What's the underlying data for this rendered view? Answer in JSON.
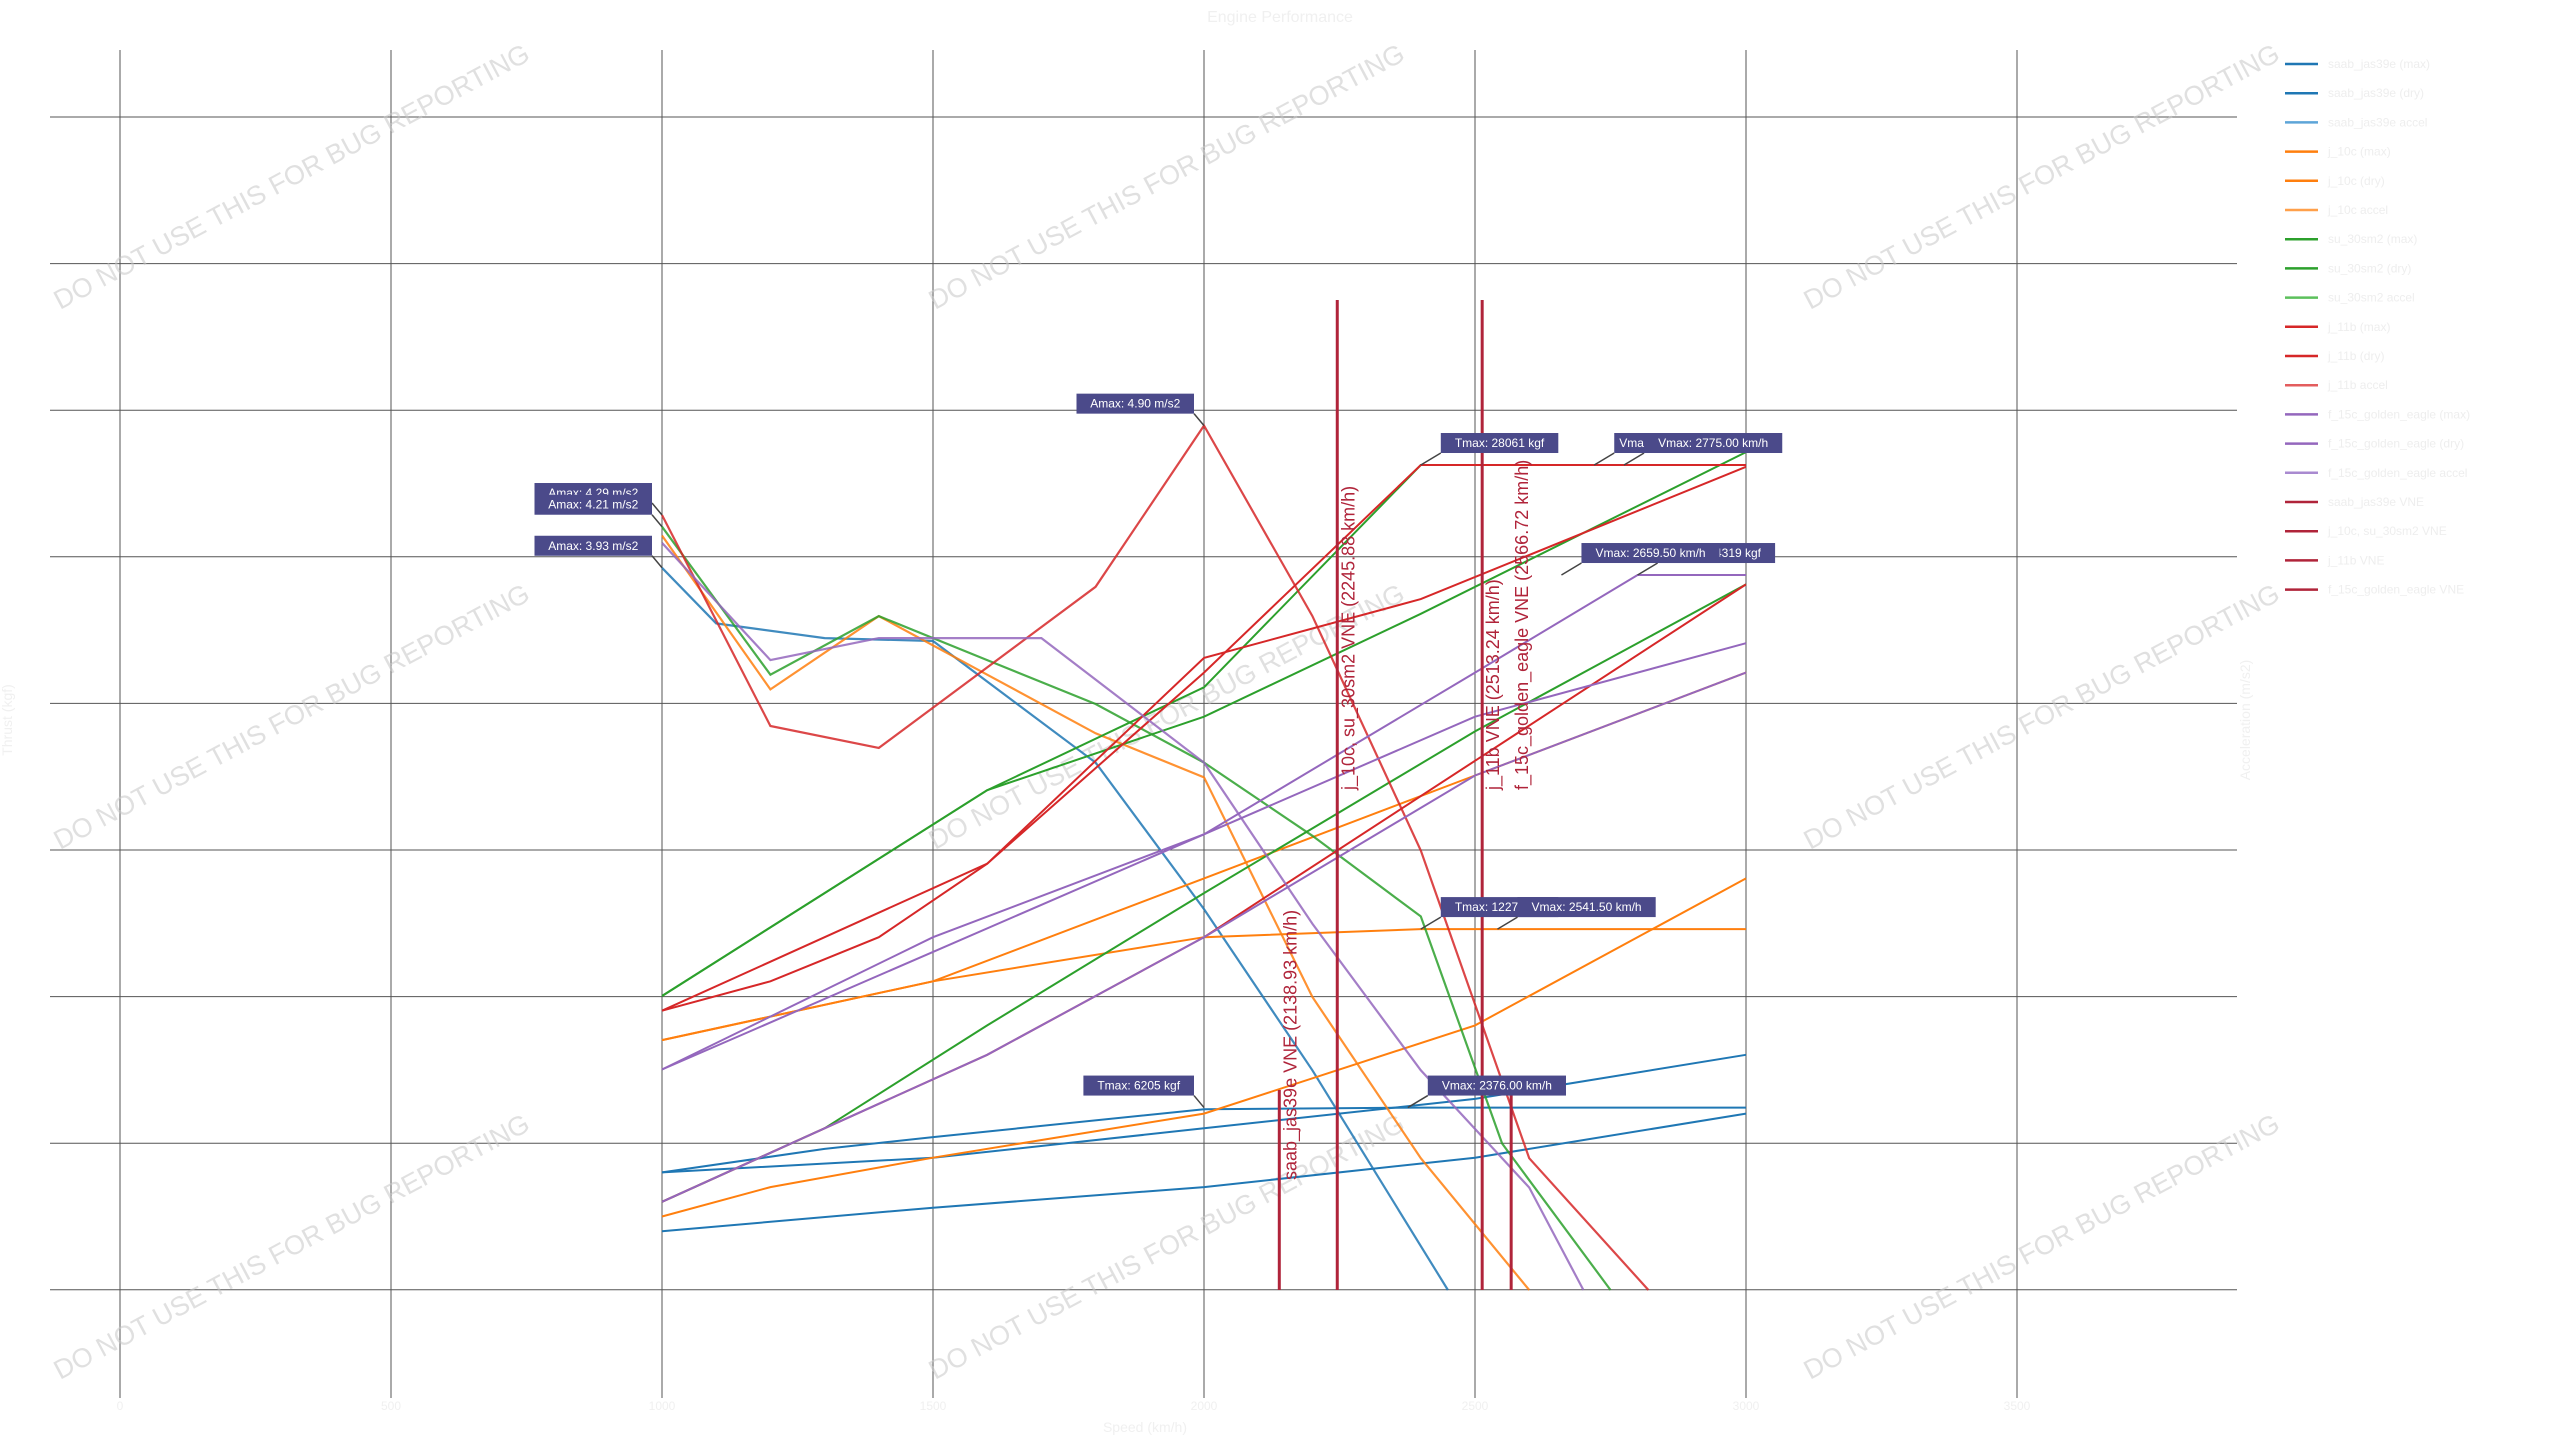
{
  "chart_data": {
    "type": "line",
    "title": "Engine Performance",
    "xlabel": "Speed (km/h)",
    "ylabel": "Thrust (kgf)",
    "y2label": "Acceleration (m/s2)",
    "watermark": "DO NOT USE THIS FOR BUG REPORTING",
    "x_tick_labels": [
      "0",
      "500",
      "1000",
      "1500",
      "2000",
      "2500",
      "3000",
      "3500"
    ],
    "xlim": [
      0,
      4000
    ],
    "ylim": [
      0,
      30000
    ],
    "y2lim": [
      -1,
      6
    ],
    "grid": true,
    "legend_position": "right",
    "groups": [
      {
        "color": "#1f77b4",
        "thrust": [
          [
            1000,
            4000
          ],
          [
            1500,
            4500
          ],
          [
            2000,
            5500
          ],
          [
            2500,
            6500
          ],
          [
            3000,
            8000
          ]
        ],
        "thrust_dry": [
          [
            1000,
            2000
          ],
          [
            1500,
            2800
          ],
          [
            2000,
            3500
          ],
          [
            2500,
            4500
          ],
          [
            3000,
            6000
          ]
        ],
        "cap": [
          [
            1000,
            4000
          ],
          [
            1300,
            4800
          ],
          [
            1500,
            5200
          ],
          [
            2000,
            6150
          ],
          [
            2400,
            6205
          ],
          [
            3000,
            6205
          ]
        ],
        "accel": [
          [
            1000,
            3.93
          ],
          [
            1100,
            3.55
          ],
          [
            1300,
            3.45
          ],
          [
            1500,
            3.43
          ],
          [
            1800,
            2.6
          ],
          [
            2000,
            1.6
          ],
          [
            2200,
            0.5
          ],
          [
            2450,
            -1.0
          ]
        ]
      },
      {
        "color": "#ff7f0e",
        "thrust": [
          [
            1000,
            8500
          ],
          [
            1500,
            10500
          ],
          [
            2000,
            14000
          ],
          [
            2500,
            17500
          ],
          [
            3000,
            21000
          ]
        ],
        "thrust_dry": [
          [
            1000,
            2500
          ],
          [
            1200,
            3500
          ],
          [
            1500,
            4500
          ],
          [
            2000,
            6000
          ],
          [
            2500,
            9000
          ],
          [
            3000,
            14000
          ]
        ],
        "cap": [
          [
            1000,
            8500
          ],
          [
            1500,
            10500
          ],
          [
            2000,
            12000
          ],
          [
            2400,
            12276
          ],
          [
            3000,
            12276
          ]
        ],
        "accel": [
          [
            1000,
            4.15
          ],
          [
            1200,
            3.1
          ],
          [
            1400,
            3.6
          ],
          [
            1600,
            3.2
          ],
          [
            1800,
            2.8
          ],
          [
            2000,
            2.5
          ],
          [
            2200,
            1.0
          ],
          [
            2400,
            -0.1
          ],
          [
            2600,
            -1.0
          ]
        ]
      },
      {
        "color": "#2ca02c",
        "thrust": [
          [
            1000,
            3000
          ],
          [
            1300,
            5500
          ],
          [
            1600,
            9000
          ],
          [
            2000,
            13500
          ],
          [
            2500,
            19000
          ],
          [
            3000,
            24000
          ]
        ],
        "thrust_dry": [
          [
            1000,
            10000
          ],
          [
            1300,
            13500
          ],
          [
            1600,
            17000
          ],
          [
            2000,
            19500
          ],
          [
            2400,
            23000
          ],
          [
            3000,
            28500
          ]
        ],
        "cap": [
          [
            1000,
            10000
          ],
          [
            1600,
            17000
          ],
          [
            2000,
            20500
          ],
          [
            2400,
            28061
          ],
          [
            3000,
            28061
          ]
        ],
        "accel": [
          [
            1000,
            4.21
          ],
          [
            1200,
            3.2
          ],
          [
            1400,
            3.6
          ],
          [
            1600,
            3.3
          ],
          [
            1800,
            3.0
          ],
          [
            2000,
            2.6
          ],
          [
            2200,
            2.1
          ],
          [
            2400,
            1.55
          ],
          [
            2550,
            0
          ],
          [
            2750,
            -1.0
          ]
        ]
      },
      {
        "color": "#d62728",
        "thrust": [
          [
            1000,
            3000
          ],
          [
            1300,
            5500
          ],
          [
            1600,
            8000
          ],
          [
            2000,
            12000
          ],
          [
            2500,
            18000
          ],
          [
            3000,
            24000
          ]
        ],
        "thrust_dry": [
          [
            1000,
            9500
          ],
          [
            1200,
            10500
          ],
          [
            1400,
            12000
          ],
          [
            1600,
            14500
          ],
          [
            1800,
            18000
          ],
          [
            2000,
            21500
          ],
          [
            2400,
            23500
          ],
          [
            3000,
            28000
          ]
        ],
        "cap": [
          [
            1000,
            9500
          ],
          [
            1600,
            14500
          ],
          [
            2000,
            21000
          ],
          [
            2400,
            28061
          ],
          [
            3000,
            28061
          ]
        ],
        "accel": [
          [
            1000,
            4.29
          ],
          [
            1200,
            2.85
          ],
          [
            1400,
            2.7
          ],
          [
            1800,
            3.8
          ],
          [
            2000,
            4.9
          ],
          [
            2200,
            3.6
          ],
          [
            2400,
            2.0
          ],
          [
            2600,
            -0.1
          ],
          [
            2820,
            -1.0
          ]
        ]
      },
      {
        "color": "#9467bd",
        "thrust": [
          [
            1000,
            7500
          ],
          [
            1500,
            12000
          ],
          [
            2000,
            15500
          ],
          [
            2500,
            19500
          ],
          [
            3000,
            22000
          ]
        ],
        "thrust_dry": [
          [
            1000,
            3000
          ],
          [
            1300,
            5500
          ],
          [
            1600,
            8000
          ],
          [
            2000,
            12000
          ],
          [
            2500,
            17500
          ],
          [
            3000,
            21000
          ]
        ],
        "cap": [
          [
            1000,
            7500
          ],
          [
            1500,
            11500
          ],
          [
            2000,
            15500
          ],
          [
            2500,
            21000
          ],
          [
            2800,
            24319
          ],
          [
            3000,
            24319
          ]
        ],
        "accel": [
          [
            1000,
            4.1
          ],
          [
            1200,
            3.3
          ],
          [
            1400,
            3.45
          ],
          [
            1700,
            3.45
          ],
          [
            2000,
            2.6
          ],
          [
            2200,
            1.5
          ],
          [
            2400,
            0.5
          ],
          [
            2600,
            -0.3
          ],
          [
            2700,
            -1.0
          ]
        ]
      }
    ],
    "vne_lines": [
      {
        "label": "saab_jas39e VNE (2138.93 km/h)",
        "x": 2138.93
      },
      {
        "label": "j_10c, su_30sm2 VNE (2245.88 km/h)",
        "x": 2245.88
      },
      {
        "label": "j_11b VNE (2513.24 km/h)",
        "x": 2513.24
      },
      {
        "label": "f_15c_golden_eagle VNE (2566.72 km/h)",
        "x": 2566.72
      }
    ],
    "annotations": [
      {
        "text": "Amax: 4.90 m/s2",
        "x": 2000,
        "y2": 4.9,
        "side": "left"
      },
      {
        "text": "Amax: 4.29 m/s2",
        "x": 1000,
        "y2": 4.29,
        "side": "left"
      },
      {
        "text": "Amax: 4.21 m/s2",
        "x": 1000,
        "y2": 4.21,
        "side": "left"
      },
      {
        "text": "Amax: 3.93 m/s2",
        "x": 1000,
        "y2": 3.93,
        "side": "left"
      },
      {
        "text": "Tmax: 28061 kgf",
        "x": 2400,
        "y": 28061,
        "side": "right"
      },
      {
        "text": "Tmax: 24319 kgf",
        "x": 2800,
        "y": 24319,
        "side": "right"
      },
      {
        "text": "Tmax: 12276 kgf",
        "x": 2400,
        "y": 12276,
        "side": "right"
      },
      {
        "text": "Tmax: 6205 kgf",
        "x": 2000,
        "y": 6205,
        "side": "left"
      },
      {
        "text": "Vmax: 2775.00 km/h",
        "x": 2775,
        "y": 28061,
        "side": "right"
      },
      {
        "text": "Vma",
        "x": 2720,
        "y": 28061,
        "side": "right"
      },
      {
        "text": "Vmax: 2659.50 km/h",
        "x": 2659.5,
        "y": 24319,
        "side": "right"
      },
      {
        "text": "Vmax: 2541.50 km/h",
        "x": 2541.5,
        "y": 12276,
        "side": "right"
      },
      {
        "text": "Vmax: 2376.00 km/h",
        "x": 2376,
        "y": 6205,
        "side": "right"
      }
    ],
    "legend": [
      {
        "name": "saab_jas39e (max)",
        "color": "#1f77b4"
      },
      {
        "name": "saab_jas39e (dry)",
        "color": "#1f77b4"
      },
      {
        "name": "saab_jas39e accel",
        "color": "#5da5d8"
      },
      {
        "name": "j_10c (max)",
        "color": "#ff7f0e"
      },
      {
        "name": "j_10c (dry)",
        "color": "#ff7f0e"
      },
      {
        "name": "j_10c accel",
        "color": "#ffa04a"
      },
      {
        "name": "su_30sm2 (max)",
        "color": "#2ca02c"
      },
      {
        "name": "su_30sm2 (dry)",
        "color": "#2ca02c"
      },
      {
        "name": "su_30sm2 accel",
        "color": "#5cc05c"
      },
      {
        "name": "j_11b (max)",
        "color": "#d62728"
      },
      {
        "name": "j_11b (dry)",
        "color": "#d62728"
      },
      {
        "name": "j_11b accel",
        "color": "#e35d5e"
      },
      {
        "name": "f_15c_golden_eagle (max)",
        "color": "#9467bd"
      },
      {
        "name": "f_15c_golden_eagle (dry)",
        "color": "#9467bd"
      },
      {
        "name": "f_15c_golden_eagle accel",
        "color": "#a98ad0"
      },
      {
        "name": "saab_jas39e VNE",
        "color": "#b0243a"
      },
      {
        "name": "j_10c, su_30sm2 VNE",
        "color": "#b0243a"
      },
      {
        "name": "j_11b VNE",
        "color": "#b0243a"
      },
      {
        "name": "f_15c_golden_eagle VNE",
        "color": "#b0243a"
      }
    ]
  }
}
